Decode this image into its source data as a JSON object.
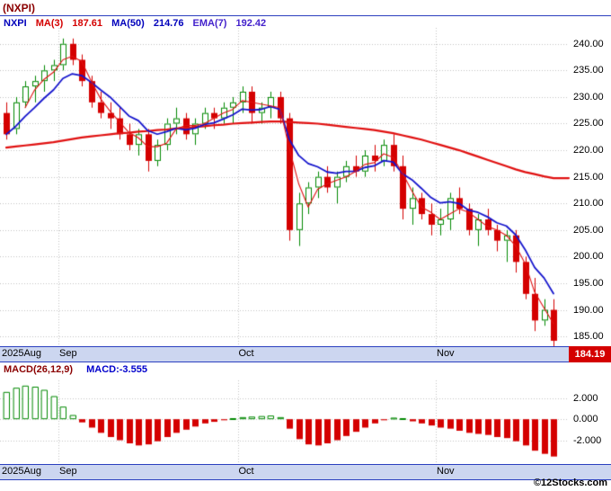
{
  "title": "(NXPI)",
  "legend": {
    "symbol": "NXPI",
    "ma3_label": "MA(3)",
    "ma3_value": "187.61",
    "ma50_label": "MA(50)",
    "ma50_value": "214.76",
    "ema7_label": "EMA(7)",
    "ema7_value": "192.42"
  },
  "macd_legend": {
    "label": "MACD(26,12,9)",
    "value": "MACD:-3.555"
  },
  "price_badge": "184.19",
  "footer": "©12Stocks.com",
  "colors": {
    "up": "#008800",
    "down": "#d40000",
    "ma3": "#e01010",
    "ma50": "#e01010",
    "ema7": "#1414cc",
    "grid": "#c0c0c0",
    "strip_bg": "#ccd6f0",
    "strip_border": "#2b3fbf",
    "badge_bg": "#d40000",
    "badge_fg": "#ffffff"
  },
  "chart_data": {
    "type": "candlestick",
    "title": "(NXPI)",
    "legend_position": "top-left",
    "grid": true,
    "x_unit": "trading-day",
    "months": [
      {
        "label": "2025Aug",
        "index": 0
      },
      {
        "label": "Sep",
        "index": 6
      },
      {
        "label": "Oct",
        "index": 25
      },
      {
        "label": "Nov",
        "index": 46
      }
    ],
    "price_ylim": [
      183.5,
      243
    ],
    "price_yticks": [
      240,
      235,
      230,
      225,
      220,
      215,
      210,
      205,
      200,
      195,
      190,
      185
    ],
    "last_price": 184.19,
    "candles": [
      [
        227,
        229,
        222,
        223
      ],
      [
        224,
        230,
        223,
        229
      ],
      [
        229,
        233,
        228,
        232
      ],
      [
        232,
        234,
        229,
        233
      ],
      [
        233,
        236,
        231,
        235
      ],
      [
        235,
        237,
        233,
        236
      ],
      [
        236,
        241,
        235,
        240
      ],
      [
        240,
        241,
        236,
        237
      ],
      [
        237,
        238,
        232,
        233
      ],
      [
        233,
        234,
        228,
        229
      ],
      [
        229,
        231,
        226,
        227
      ],
      [
        227,
        229,
        224,
        226
      ],
      [
        226,
        228,
        222,
        223
      ],
      [
        223,
        225,
        220,
        221
      ],
      [
        221,
        224,
        219,
        223
      ],
      [
        223,
        224,
        216,
        218
      ],
      [
        218,
        222,
        217,
        221
      ],
      [
        221,
        226,
        220,
        225
      ],
      [
        225,
        228,
        223,
        226
      ],
      [
        226,
        227,
        222,
        223
      ],
      [
        223,
        226,
        221,
        225
      ],
      [
        225,
        228,
        224,
        227
      ],
      [
        227,
        228,
        224,
        226
      ],
      [
        226,
        229,
        225,
        228
      ],
      [
        228,
        230,
        225,
        229
      ],
      [
        229,
        232,
        227,
        231
      ],
      [
        231,
        232,
        225,
        227
      ],
      [
        227,
        229,
        225,
        228
      ],
      [
        228,
        231,
        226,
        230
      ],
      [
        230,
        231,
        225,
        226
      ],
      [
        226,
        227,
        203,
        205
      ],
      [
        205,
        212,
        202,
        210
      ],
      [
        210,
        214,
        208,
        213
      ],
      [
        213,
        216,
        211,
        215
      ],
      [
        215,
        217,
        212,
        213
      ],
      [
        213,
        216,
        210,
        215
      ],
      [
        215,
        218,
        214,
        217
      ],
      [
        217,
        219,
        215,
        216
      ],
      [
        216,
        220,
        215,
        219
      ],
      [
        219,
        221,
        216,
        218
      ],
      [
        218,
        222,
        217,
        221
      ],
      [
        221,
        223,
        216,
        217
      ],
      [
        217,
        219,
        207,
        209
      ],
      [
        209,
        213,
        206,
        211
      ],
      [
        211,
        212,
        207,
        208
      ],
      [
        208,
        210,
        204,
        206
      ],
      [
        206,
        209,
        204,
        207
      ],
      [
        207,
        212,
        205,
        211
      ],
      [
        211,
        213,
        208,
        209
      ],
      [
        209,
        210,
        204,
        205
      ],
      [
        205,
        208,
        202,
        207
      ],
      [
        207,
        209,
        204,
        205
      ],
      [
        205,
        206,
        201,
        203
      ],
      [
        203,
        205,
        199,
        204
      ],
      [
        204,
        205,
        197,
        199
      ],
      [
        199,
        200,
        192,
        193
      ],
      [
        193,
        196,
        186,
        188
      ],
      [
        188,
        192,
        187,
        190
      ],
      [
        190,
        192,
        183,
        184.19
      ]
    ],
    "ma3_window": 3,
    "ema7_span": 7,
    "ma50": [
      220.5,
      220.7,
      220.9,
      221.1,
      221.3,
      221.5,
      221.8,
      222.1,
      222.4,
      222.6,
      222.8,
      223.0,
      223.2,
      223.3,
      223.5,
      223.6,
      223.8,
      223.9,
      224.1,
      224.2,
      224.4,
      224.5,
      224.7,
      224.8,
      225.0,
      225.1,
      225.2,
      225.3,
      225.4,
      225.4,
      225.3,
      225.2,
      225.1,
      225.0,
      224.8,
      224.6,
      224.4,
      224.2,
      224.0,
      223.8,
      223.5,
      223.2,
      222.8,
      222.4,
      222.0,
      221.5,
      221.0,
      220.5,
      220.0,
      219.4,
      218.8,
      218.2,
      217.6,
      217.0,
      216.4,
      215.9,
      215.5,
      215.1,
      214.76
    ],
    "macd": {
      "ylim": [
        -4.1,
        3.7
      ],
      "yticks": [
        2,
        0,
        -2
      ],
      "current": -3.555,
      "values": [
        2.6,
        3.0,
        3.2,
        3.1,
        2.8,
        2.2,
        1.2,
        0.4,
        -0.3,
        -0.8,
        -1.3,
        -1.7,
        -2.0,
        -2.3,
        -2.5,
        -2.4,
        -2.1,
        -1.7,
        -1.3,
        -1.0,
        -0.7,
        -0.4,
        -0.25,
        -0.1,
        0.1,
        0.2,
        0.25,
        0.3,
        0.35,
        0.2,
        -0.9,
        -1.9,
        -2.4,
        -2.5,
        -2.3,
        -2.0,
        -1.6,
        -1.2,
        -0.8,
        -0.4,
        -0.1,
        0.15,
        0.1,
        -0.2,
        -0.4,
        -0.6,
        -0.8,
        -0.9,
        -1.1,
        -1.3,
        -1.4,
        -1.5,
        -1.7,
        -1.8,
        -2.1,
        -2.5,
        -3.0,
        -3.3,
        -3.555
      ]
    }
  }
}
